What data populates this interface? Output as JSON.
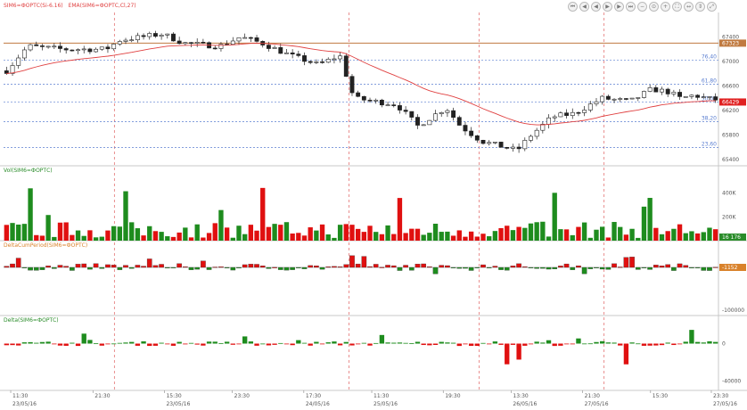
{
  "panels": {
    "price": {
      "legend": [
        "SIM6=ФОРТС(Si-6.16)",
        "EMA(SIM6=ФОРТС,Cl,27)"
      ],
      "axis_labels": [
        "67400",
        "67000",
        "66600",
        "66200",
        "65800",
        "65400"
      ],
      "axis_values": [
        67400,
        67000,
        66600,
        66200,
        65800,
        65400
      ],
      "ymin": 65300,
      "ymax": 67800,
      "fib_levels": [
        {
          "label": "76,40",
          "value": 67020
        },
        {
          "label": "61,80",
          "value": 66630
        },
        {
          "label": "50,00",
          "value": 66340
        },
        {
          "label": "38,20",
          "value": 66020
        },
        {
          "label": "23,60",
          "value": 65600
        }
      ],
      "top_line": {
        "value": 67300,
        "badge": "67323"
      },
      "current": {
        "value": 66340,
        "badge": "66429"
      }
    },
    "vol": {
      "title": "Vol(SIM6=ФОРТС)",
      "axis_labels": [
        "400K",
        "200K"
      ],
      "axis_values": [
        400000,
        200000
      ],
      "ymax": 600000,
      "badge": "16 176"
    },
    "delta_cum": {
      "title": "DeltaCumPeriod(SIM6=ФОРТС)",
      "axis_labels": [
        "-100000"
      ],
      "axis_values": [
        -100000
      ],
      "badge": "-1152"
    },
    "delta": {
      "title": "Delta(SIM6=ФОРТС)",
      "axis_labels": [
        "0",
        "-40000"
      ],
      "axis_values": [
        0,
        -40000
      ],
      "ymin": -50000,
      "ymax": 30000
    }
  },
  "time_axis": {
    "labels": [
      {
        "time": "11:30",
        "date": "23/05/16",
        "frac": 0.01
      },
      {
        "time": "21:30",
        "date": "",
        "frac": 0.125
      },
      {
        "time": "15:30",
        "date": "23/05/16",
        "frac": 0.225
      },
      {
        "time": "23:30",
        "date": "",
        "frac": 0.32
      },
      {
        "time": "17:30",
        "date": "24/05/16",
        "frac": 0.42
      },
      {
        "time": "11:30",
        "date": "25/05/16",
        "frac": 0.515
      },
      {
        "time": "19:30",
        "date": "",
        "frac": 0.615
      },
      {
        "time": "13:30",
        "date": "26/05/16",
        "frac": 0.71
      },
      {
        "time": "21:30",
        "date": "27/05/16",
        "frac": 0.81
      },
      {
        "time": "15:30",
        "date": "",
        "frac": 0.905
      },
      {
        "time": "23:30",
        "date": "27/05/16",
        "frac": 0.99
      }
    ],
    "session_breaks": [
      0.155,
      0.483,
      0.665,
      0.84
    ]
  },
  "toolbar": [
    "⏮",
    "◀",
    "◀",
    "▶",
    "▶",
    "⏭",
    "−",
    "⊙",
    "+",
    "⛶",
    "↔",
    "⇕",
    "⤢"
  ],
  "colors": {
    "up": "#1e8c1e",
    "down": "#e01010",
    "ema": "#e04040",
    "fib": "#5b7fd1",
    "top": "#c07a40",
    "badge_red": "#e02020",
    "badge_green": "#2a8c2a",
    "badge_orange": "#d9822b"
  }
}
